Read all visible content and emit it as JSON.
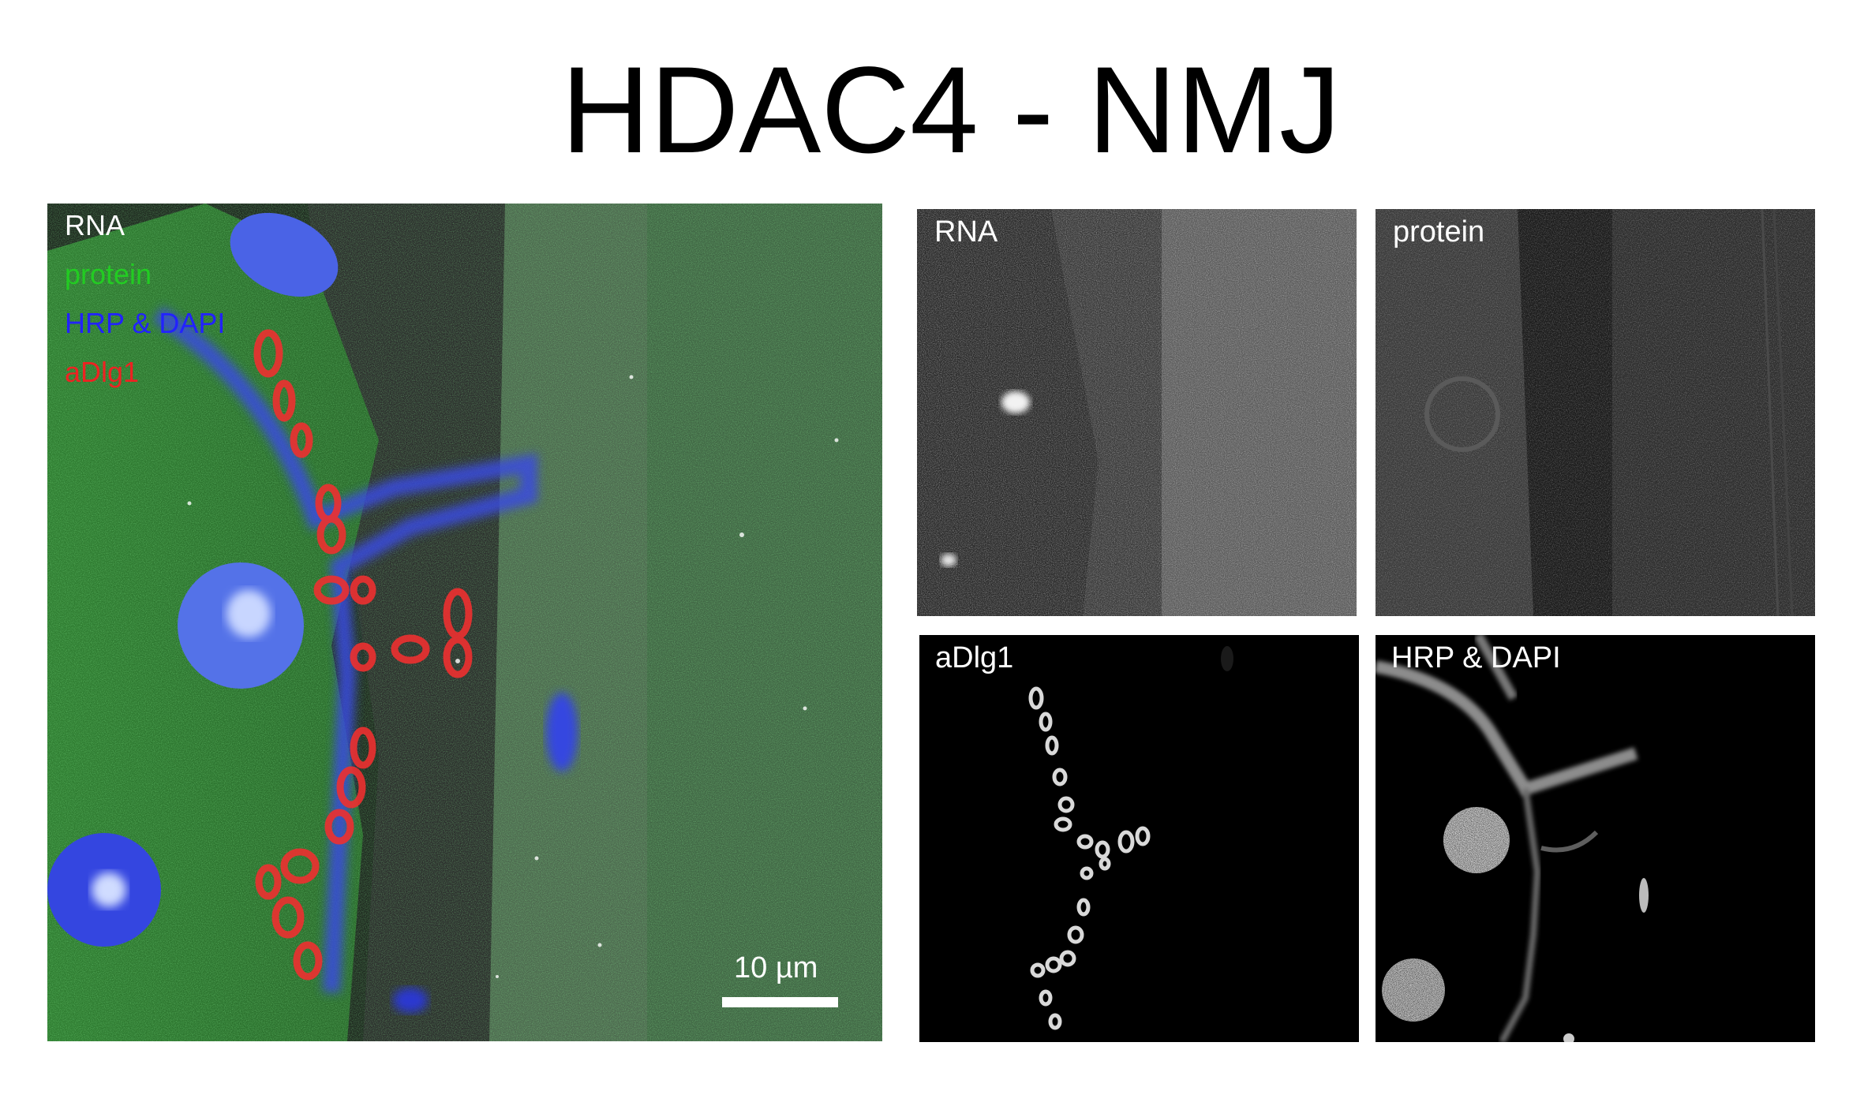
{
  "title": "HDAC4 - NMJ",
  "merged_panel": {
    "labels": [
      {
        "text": "RNA",
        "color": "#ffffff"
      },
      {
        "text": "protein",
        "color": "#22cc22"
      },
      {
        "text": "HRP & DAPI",
        "color": "#2222ff"
      },
      {
        "text": "aDlg1",
        "color": "#ee2222"
      }
    ],
    "scale_bar_label": "10 µm"
  },
  "channel_panels": [
    {
      "label": "RNA"
    },
    {
      "label": "protein"
    },
    {
      "label": "aDlg1"
    },
    {
      "label": "HRP & DAPI"
    }
  ]
}
